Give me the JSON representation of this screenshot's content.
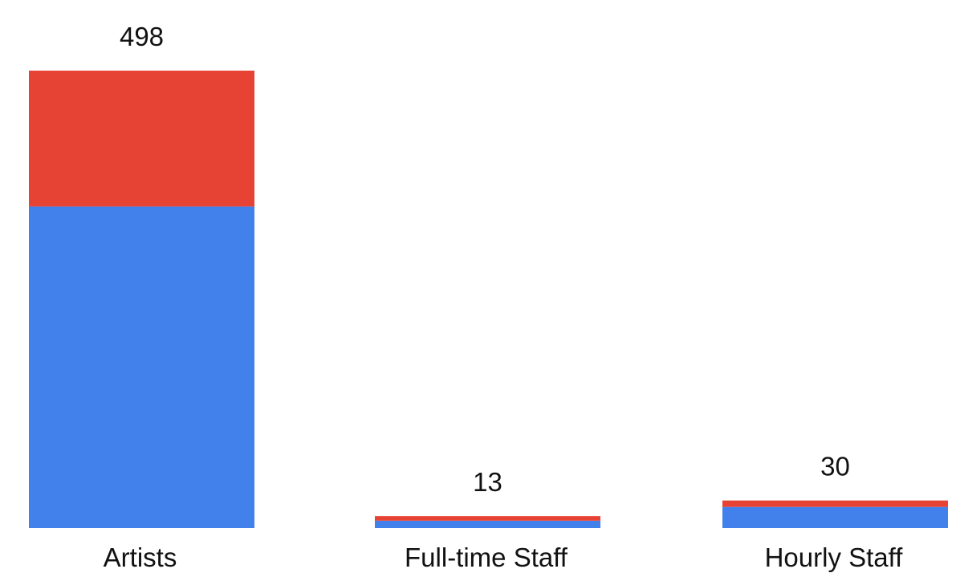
{
  "chart_data": {
    "type": "bar",
    "stacked": true,
    "categories": [
      "Artists",
      "Full-time Staff",
      "Hourly Staff"
    ],
    "totals": [
      498,
      13,
      30
    ],
    "total_labels": [
      "498",
      "13",
      "30"
    ],
    "series": [
      {
        "values": [
          350,
          8,
          23
        ],
        "color": "#4281EC"
      },
      {
        "values": [
          148,
          5,
          7
        ],
        "color": "#E64335"
      }
    ],
    "ylim": [
      0,
      498
    ],
    "grid": false,
    "legend": "none",
    "title": "",
    "xlabel": "",
    "ylabel": ""
  }
}
